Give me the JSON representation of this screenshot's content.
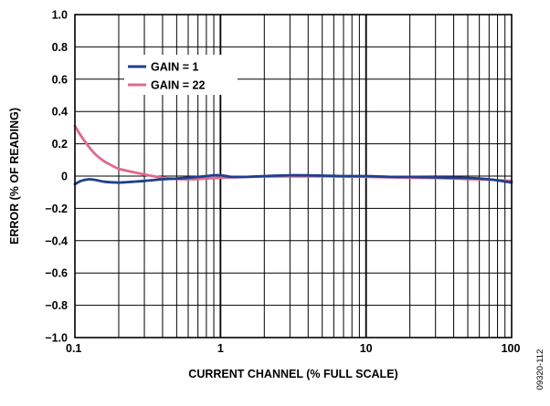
{
  "chart_data": {
    "type": "line",
    "xlabel": "CURRENT CHANNEL (% FULL SCALE)",
    "ylabel": "ERROR (% OF READING)",
    "xscale": "log",
    "xlim": [
      0.1,
      100
    ],
    "ylim": [
      -1.0,
      1.0
    ],
    "x_ticks": [
      0.1,
      1,
      10,
      100
    ],
    "x_tick_labels": [
      "0.1",
      "1",
      "10",
      "100"
    ],
    "y_ticks": [
      1.0,
      0.8,
      0.6,
      0.4,
      0.2,
      0,
      -0.2,
      -0.4,
      -0.6,
      -0.8,
      -1.0
    ],
    "y_tick_labels": [
      "1.0",
      "0.8",
      "0.6",
      "0.4",
      "0.2",
      "0",
      "−0.2",
      "−0.4",
      "−0.6",
      "−0.8",
      "−1.0"
    ],
    "grid": true,
    "legend_position": "top-left",
    "series": [
      {
        "name": "GAIN = 1",
        "color": "#1f3f8f",
        "x": [
          0.1,
          0.11,
          0.125,
          0.14,
          0.16,
          0.2,
          0.25,
          0.3,
          0.4,
          0.5,
          0.6,
          0.7,
          0.8,
          0.9,
          1.0,
          1.1,
          1.2,
          1.5,
          2,
          3,
          5,
          7,
          10,
          15,
          20,
          30,
          50,
          70,
          100
        ],
        "y": [
          -0.05,
          -0.03,
          -0.02,
          -0.025,
          -0.035,
          -0.04,
          -0.035,
          -0.03,
          -0.02,
          -0.015,
          -0.01,
          -0.005,
          0.0,
          0.005,
          0.005,
          0.0,
          -0.005,
          -0.005,
          0.0,
          0.005,
          0.003,
          0.0,
          0.0,
          -0.005,
          -0.005,
          -0.008,
          -0.012,
          -0.02,
          -0.04
        ]
      },
      {
        "name": "GAIN = 22",
        "color": "#e06a8a",
        "x": [
          0.1,
          0.11,
          0.125,
          0.14,
          0.16,
          0.18,
          0.2,
          0.25,
          0.3,
          0.4,
          0.5,
          0.6,
          0.7,
          0.8,
          0.9,
          1.0,
          1.2,
          1.5,
          2,
          3,
          5,
          7,
          10,
          15,
          20,
          30,
          50,
          70,
          100
        ],
        "y": [
          0.31,
          0.25,
          0.18,
          0.13,
          0.09,
          0.065,
          0.045,
          0.025,
          0.01,
          -0.01,
          -0.018,
          -0.02,
          -0.018,
          -0.015,
          -0.012,
          -0.01,
          -0.008,
          -0.005,
          -0.003,
          -0.002,
          -0.002,
          -0.003,
          -0.005,
          -0.008,
          -0.01,
          -0.012,
          -0.018,
          -0.022,
          -0.03
        ]
      }
    ],
    "figure_id": "09320-112"
  }
}
